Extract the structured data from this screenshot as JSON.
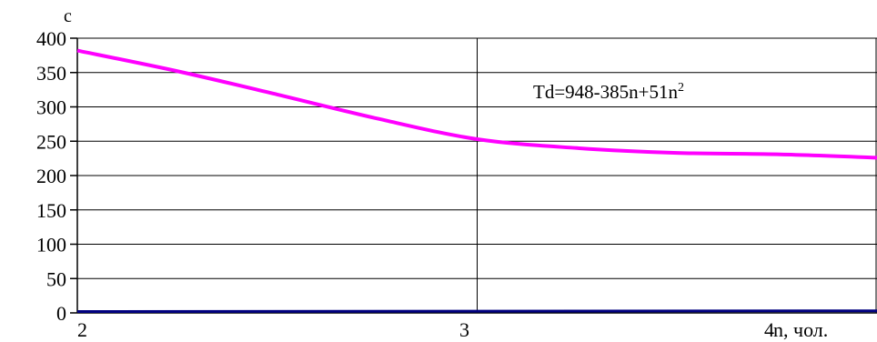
{
  "chart_data": {
    "type": "line",
    "ylabel": "c",
    "xlabel": "n, чол.",
    "x_ticks": [
      2,
      3,
      4
    ],
    "y_ticks": [
      0,
      50,
      100,
      150,
      200,
      250,
      300,
      350,
      400
    ],
    "xlim": [
      2,
      4
    ],
    "ylim": [
      0,
      400
    ],
    "grid": true,
    "annotation": {
      "text": "Td=948-385n+51n",
      "superscript": "2"
    },
    "series": [
      {
        "color": "#ff00ff",
        "x": [
          2.0,
          2.25,
          2.5,
          2.75,
          3.0,
          3.25,
          3.5,
          3.75,
          4.0
        ],
        "y": [
          382,
          352,
          318,
          283,
          253,
          240,
          233,
          231,
          226
        ]
      },
      {
        "color": "#000080",
        "x": [
          2.0,
          4.0
        ],
        "y": [
          2,
          3
        ]
      }
    ]
  }
}
